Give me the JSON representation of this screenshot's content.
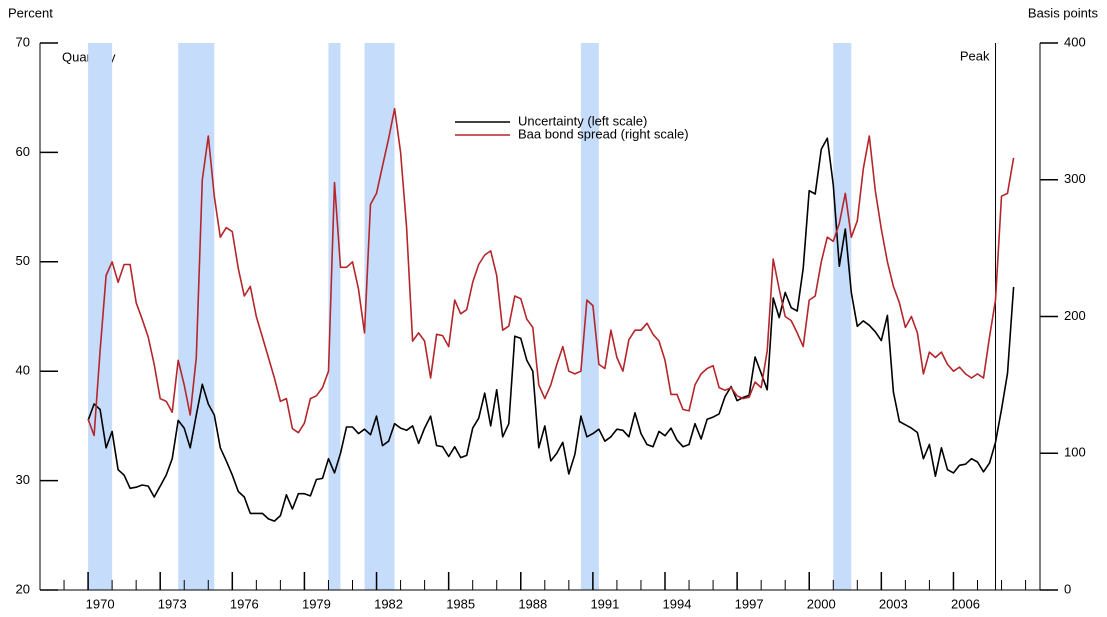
{
  "chart_data": {
    "type": "line",
    "x_unit_label": "Quarterly",
    "ylabel": "Percent",
    "y2label": "Basis points",
    "x": [
      1970,
      1970.25,
      1970.5,
      1970.75,
      1971,
      1971.25,
      1971.5,
      1971.75,
      1972,
      1972.25,
      1972.5,
      1972.75,
      1973,
      1973.25,
      1973.5,
      1973.75,
      1974,
      1974.25,
      1974.5,
      1974.75,
      1975,
      1975.25,
      1975.5,
      1975.75,
      1976,
      1976.25,
      1976.5,
      1976.75,
      1977,
      1977.25,
      1977.5,
      1977.75,
      1978,
      1978.25,
      1978.5,
      1978.75,
      1979,
      1979.25,
      1979.5,
      1979.75,
      1980,
      1980.25,
      1980.5,
      1980.75,
      1981,
      1981.25,
      1981.5,
      1981.75,
      1982,
      1982.25,
      1982.5,
      1982.75,
      1983,
      1983.25,
      1983.5,
      1983.75,
      1984,
      1984.25,
      1984.5,
      1984.75,
      1985,
      1985.25,
      1985.5,
      1985.75,
      1986,
      1986.25,
      1986.5,
      1986.75,
      1987,
      1987.25,
      1987.5,
      1987.75,
      1988,
      1988.25,
      1988.5,
      1988.75,
      1989,
      1989.25,
      1989.5,
      1989.75,
      1990,
      1990.25,
      1990.5,
      1990.75,
      1991,
      1991.25,
      1991.5,
      1991.75,
      1992,
      1992.25,
      1992.5,
      1992.75,
      1993,
      1993.25,
      1993.5,
      1993.75,
      1994,
      1994.25,
      1994.5,
      1994.75,
      1995,
      1995.25,
      1995.5,
      1995.75,
      1996,
      1996.25,
      1996.5,
      1996.75,
      1997,
      1997.25,
      1997.5,
      1997.75,
      1998,
      1998.25,
      1998.5,
      1998.75,
      1999,
      1999.25,
      1999.5,
      1999.75,
      2000,
      2000.25,
      2000.5,
      2000.75,
      2001,
      2001.25,
      2001.5,
      2001.75,
      2002,
      2002.25,
      2002.5,
      2002.75,
      2003,
      2003.25,
      2003.5,
      2003.75,
      2004,
      2004.25,
      2004.5,
      2004.75,
      2005,
      2005.25,
      2005.5,
      2005.75,
      2006,
      2006.25,
      2006.5,
      2006.75,
      2007,
      2007.25,
      2007.5,
      2007.75,
      2008,
      2008.25,
      2008.5
    ],
    "series": [
      {
        "name": "Uncertainty (left scale)",
        "color": "#000000",
        "values": [
          35.5,
          37,
          36.5,
          33,
          34.5,
          31,
          30.5,
          29.3,
          29.4,
          29.6,
          29.5,
          28.5,
          29.5,
          30.5,
          32,
          35.5,
          34.8,
          33,
          36,
          38.8,
          37,
          36,
          33,
          31.8,
          30.5,
          29,
          28.5,
          27,
          27,
          27,
          26.5,
          26.3,
          26.8,
          28.7,
          27.4,
          28.8,
          28.8,
          28.6,
          30.1,
          30.2,
          32,
          30.7,
          32.5,
          34.9,
          34.9,
          34.3,
          34.7,
          34.2,
          35.9,
          33.2,
          33.6,
          35.2,
          34.8,
          34.6,
          35,
          33.4,
          34.8,
          35.9,
          33.2,
          33.1,
          32.2,
          33.1,
          32.1,
          32.3,
          34.8,
          35.7,
          38,
          35,
          38.3,
          34,
          35.2,
          43.2,
          43,
          41,
          40,
          33,
          35,
          31.8,
          32.5,
          33.5,
          30.6,
          32.4,
          35.9,
          34,
          34.3,
          34.7,
          33.6,
          34,
          34.7,
          34.6,
          34,
          36.2,
          34.3,
          33.3,
          33.1,
          34.5,
          34.1,
          34.8,
          33.7,
          33.1,
          33.3,
          35.2,
          33.8,
          35.6,
          35.8,
          36.1,
          37.7,
          38.6,
          37.3,
          37.6,
          37.8,
          41.3,
          39.8,
          38.3,
          46.7,
          44.9,
          47.2,
          45.8,
          45.5,
          49.4,
          56.5,
          56.2,
          60.3,
          61.3,
          57,
          49.6,
          53,
          47.2,
          44.1,
          44.6,
          44.2,
          43.6,
          42.8,
          45.1,
          38.1,
          35.4,
          35.1,
          34.8,
          34.4,
          32,
          33.3,
          30.4,
          33,
          31,
          30.7,
          31.4,
          31.5,
          32,
          31.7,
          30.8,
          31.6,
          33.5,
          36.5,
          39.8,
          47.7
        ]
      },
      {
        "name": "Baa bond spread (right scale)",
        "color": "#b5262b",
        "axis": "y2",
        "values": [
          125,
          113,
          175,
          230,
          240,
          225,
          238,
          238,
          210,
          198,
          185,
          165,
          140,
          138,
          130,
          168,
          150,
          128,
          170,
          300,
          332,
          288,
          258,
          265,
          262,
          235,
          215,
          222,
          200,
          185,
          170,
          155,
          138,
          140,
          118,
          115,
          122,
          140,
          142,
          148,
          160,
          298,
          236,
          236,
          240,
          220,
          188,
          282,
          290,
          310,
          330,
          352,
          320,
          265,
          182,
          188,
          182,
          155,
          187,
          186,
          178,
          212,
          202,
          205,
          225,
          238,
          245,
          248,
          230,
          190,
          193,
          215,
          213,
          198,
          192,
          150,
          140,
          150,
          165,
          178,
          160,
          158,
          160,
          212,
          208,
          165,
          162,
          190,
          170,
          160,
          183,
          190,
          190,
          195,
          187,
          182,
          168,
          143,
          143,
          132,
          131,
          150,
          158,
          162,
          164,
          148,
          146,
          148,
          142,
          140,
          141,
          152,
          148,
          175,
          242,
          220,
          200,
          197,
          188,
          178,
          212,
          215,
          240,
          258,
          255,
          268,
          290,
          258,
          270,
          308,
          332,
          292,
          264,
          240,
          222,
          210,
          192,
          200,
          188,
          158,
          174,
          170,
          174,
          165,
          160,
          163,
          158,
          155,
          158,
          155,
          185,
          212,
          288,
          290,
          316
        ]
      }
    ],
    "xlim": [
      1968,
      2009.6
    ],
    "xticks": [
      1970,
      1973,
      1976,
      1979,
      1982,
      1985,
      1988,
      1991,
      1994,
      1997,
      2000,
      2003,
      2006
    ],
    "xminorticks": [
      1969,
      1970,
      1971,
      1972,
      1973,
      1974,
      1975,
      1976,
      1977,
      1978,
      1979,
      1980,
      1981,
      1982,
      1983,
      1984,
      1985,
      1986,
      1987,
      1988,
      1989,
      1990,
      1991,
      1992,
      1993,
      1994,
      1995,
      1996,
      1997,
      1998,
      1999,
      2000,
      2001,
      2002,
      2003,
      2004,
      2005,
      2006,
      2007,
      2008,
      2009
    ],
    "ylim": [
      20,
      70
    ],
    "yticks": [
      20,
      30,
      40,
      50,
      60,
      70
    ],
    "y2lim": [
      0,
      400
    ],
    "y2ticks": [
      0,
      100,
      200,
      300,
      400
    ],
    "shaded_periods": [
      [
        1970,
        1971
      ],
      [
        1973.75,
        1975.25
      ],
      [
        1980,
        1980.5
      ],
      [
        1981.5,
        1982.75
      ],
      [
        1990.5,
        1991.25
      ],
      [
        2001,
        2001.75
      ]
    ],
    "shade_color": "#c6dcfb",
    "annotations": [
      {
        "text": "Peak",
        "x": 2007.75
      }
    ]
  }
}
